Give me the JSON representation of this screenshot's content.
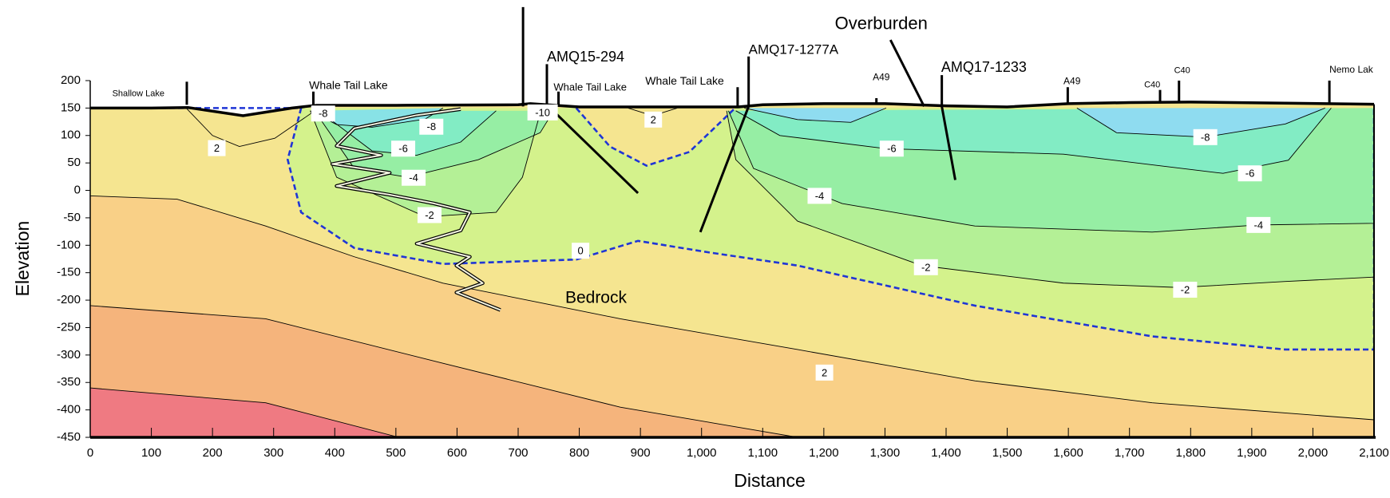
{
  "chart_data": {
    "type": "contour",
    "x_label": "Distance",
    "y_label": "Elevation",
    "xlim": [
      0,
      2100
    ],
    "ylim": [
      -450,
      200
    ],
    "xticks": [
      0,
      100,
      200,
      300,
      400,
      500,
      600,
      700,
      800,
      900,
      {
        "value": 1000,
        "label": "1,000"
      },
      {
        "value": 1100,
        "label": "1,100"
      },
      {
        "value": 1200,
        "label": "1,200"
      },
      {
        "value": 1300,
        "label": "1,300"
      },
      {
        "value": 1400,
        "label": "1,400"
      },
      {
        "value": 1500,
        "label": "1,500"
      },
      {
        "value": 1600,
        "label": "1,600"
      },
      {
        "value": 1700,
        "label": "1,700"
      },
      {
        "value": 1800,
        "label": "1,800"
      },
      {
        "value": 1900,
        "label": "1,900"
      },
      {
        "value": 2000,
        "label": "2,000"
      },
      {
        "value": 2100,
        "label": "2,100"
      }
    ],
    "yticks": [
      -450,
      -400,
      -350,
      -300,
      -250,
      -200,
      -150,
      -100,
      -50,
      0,
      50,
      100,
      150,
      200
    ],
    "grid": false,
    "surface": {
      "fill": "#f5e590",
      "x": [
        0,
        100,
        160,
        250,
        330,
        370,
        500,
        700,
        720,
        800,
        1000,
        1060,
        1100,
        1200,
        1300,
        1400,
        1500,
        1600,
        1700,
        1800,
        2100
      ],
      "y": [
        150,
        150,
        151,
        136,
        150,
        155,
        155,
        156,
        158,
        152,
        152,
        152,
        156,
        158,
        158,
        154,
        152,
        158,
        160,
        161,
        157
      ]
    },
    "contours": [
      {
        "level": 2,
        "fill": "#f9d087",
        "close": "bottom",
        "x": [
          0,
          142,
          287,
          432,
          577,
          867,
          1157,
          1447,
          1737,
          2100
        ],
        "y": [
          -10,
          -16,
          -65,
          -121,
          -169,
          -234,
          -290,
          -347,
          -387,
          -418
        ],
        "labels": [
          [
            1201,
            -332
          ]
        ]
      },
      {
        "fill": "#f5b47c",
        "close": "bottom",
        "x": [
          0,
          287,
          577,
          867,
          1157
        ],
        "y": [
          -210,
          -234,
          -315,
          -395,
          -450
        ]
      },
      {
        "fill": "#ef7a82",
        "close": "bottom",
        "x": [
          0,
          287,
          505
        ],
        "y": [
          -360,
          -387,
          -450
        ]
      },
      {
        "level": 0,
        "fill": "#d4f28c",
        "dashed": true,
        "color": "#1f35d6",
        "x": [
          0,
          345,
          323,
          345,
          432,
          577,
          795,
          896,
          1012,
          1157,
          1447,
          1737,
          1955,
          2100,
          2100
        ],
        "y": [
          150,
          150,
          56,
          -40,
          -105,
          -134,
          -126,
          -92,
          -113,
          -137,
          -210,
          -266,
          -290,
          -290,
          150
        ],
        "labels": [
          [
            802,
            -110
          ]
        ]
      },
      {
        "fill": "#f5e590",
        "dashed": true,
        "color": "#1f35d6",
        "x": [
          795,
          850,
          910,
          980,
          1055
        ],
        "y": [
          150,
          80,
          45,
          70,
          150
        ]
      },
      {
        "level": 2,
        "x": [
          880,
          920,
          960
        ],
        "y": [
          150,
          136,
          150
        ],
        "labels": [
          [
            921,
            129
          ]
        ]
      },
      {
        "level": -2,
        "fill": "#b4f096",
        "x": [
          360,
          403,
          548,
          664,
          707,
          737
        ],
        "y": [
          145,
          24,
          -48,
          -40,
          24,
          145
        ],
        "labels": [
          [
            555,
            -45
          ]
        ]
      },
      {
        "level": -2,
        "fill": "#b4f096",
        "x": [
          1041,
          1056,
          1157,
          1360,
          1592,
          1781,
          1955,
          2100,
          2100
        ],
        "y": [
          145,
          56,
          -56,
          -137,
          -169,
          -177,
          -166,
          -158,
          150
        ],
        "labels": [
          [
            1367,
            -140
          ],
          [
            1791,
            -181
          ]
        ]
      },
      {
        "level": -4,
        "fill": "#96eea4",
        "x": [
          367,
          432,
          519,
          635,
          736,
          758
        ],
        "y": [
          145,
          40,
          24,
          56,
          105,
          145
        ],
        "labels": [
          [
            529,
            23
          ]
        ]
      },
      {
        "level": -4,
        "fill": "#96eea4",
        "x": [
          1044,
          1085,
          1230,
          1447,
          1737,
          1911,
          2100,
          2100
        ],
        "y": [
          145,
          40,
          -24,
          -65,
          -76,
          -63,
          -60,
          150
        ],
        "labels": [
          [
            1193,
            -10
          ],
          [
            1911,
            -63
          ]
        ]
      },
      {
        "level": -6,
        "fill": "#82ecc4",
        "x": [
          374,
          461,
          534,
          606,
          664
        ],
        "y": [
          145,
          72,
          64,
          88,
          145
        ],
        "labels": [
          [
            512,
            76
          ]
        ]
      },
      {
        "level": -6,
        "fill": "#82ecc4",
        "x": [
          1056,
          1128,
          1302,
          1592,
          1853,
          1960,
          2030
        ],
        "y": [
          145,
          100,
          76,
          66,
          31,
          55,
          150
        ],
        "labels": [
          [
            1311,
            76
          ],
          [
            1897,
            31
          ]
        ]
      },
      {
        "level": -8,
        "fill": "#88e2e6",
        "x": [
          360,
          403,
          461,
          548,
          577
        ],
        "y": [
          145,
          120,
          115,
          130,
          150
        ],
        "labels": [
          [
            381,
            140
          ],
          [
            558,
            116
          ]
        ]
      },
      {
        "fill": "#8fdcf0",
        "x": [
          1070,
          1157,
          1244,
          1302
        ],
        "y": [
          150,
          129,
          124,
          150
        ]
      },
      {
        "level": -8,
        "fill": "#8fdcf0",
        "x": [
          1614,
          1679,
          1824,
          1955,
          2020
        ],
        "y": [
          150,
          105,
          97,
          121,
          150
        ],
        "labels": [
          [
            1824,
            97
          ]
        ]
      },
      {
        "level": -10,
        "fill": "#8fd2f0",
        "x": [
          720,
          740,
          760
        ],
        "y": [
          152,
          132,
          152
        ],
        "labels": [
          [
            740,
            142
          ]
        ]
      },
      {
        "level": 2,
        "x": [
          157,
          200,
          244,
          302,
          374
        ],
        "y": [
          150,
          100,
          80,
          95,
          150
        ],
        "labels": [
          [
            207,
            77
          ]
        ]
      }
    ],
    "lines": [
      {
        "x": [
          708,
          708
        ],
        "y": [
          334,
          153
        ]
      },
      {
        "x": [
          747,
          747,
          896
        ],
        "y": [
          230,
          156,
          -5
        ]
      },
      {
        "x": [
          766,
          766
        ],
        "y": [
          180,
          153
        ]
      },
      {
        "x": [
          1077,
          1077,
          998
        ],
        "y": [
          244,
          153,
          -76
        ]
      },
      {
        "x": [
          1059,
          1059
        ],
        "y": [
          188,
          153
        ]
      },
      {
        "x": [
          1309,
          1364
        ],
        "y": [
          274,
          153
        ]
      },
      {
        "x": [
          1393,
          1393,
          1415
        ],
        "y": [
          210,
          153,
          19
        ]
      },
      {
        "x": [
          158,
          158
        ],
        "y": [
          198,
          156
        ]
      },
      {
        "x": [
          365,
          365
        ],
        "y": [
          180,
          155
        ]
      },
      {
        "x": [
          1286,
          1286
        ],
        "y": [
          168,
          157
        ]
      },
      {
        "x": [
          1599,
          1599
        ],
        "y": [
          188,
          158
        ]
      },
      {
        "x": [
          1750,
          1750
        ],
        "y": [
          183,
          160
        ]
      },
      {
        "x": [
          1781,
          1781
        ],
        "y": [
          200,
          160
        ]
      },
      {
        "x": [
          2027,
          2027
        ],
        "y": [
          200,
          157
        ]
      }
    ],
    "ramp": {
      "x": [
        606,
        534,
        432,
        403,
        476,
        396,
        490,
        403,
        490,
        563,
        621,
        606,
        534,
        621,
        599,
        642,
        599,
        671
      ],
      "y": [
        148,
        137,
        113,
        81,
        64,
        48,
        32,
        8,
        -8,
        -24,
        -40,
        -73,
        -97,
        -121,
        -137,
        -169,
        -186,
        -218
      ]
    },
    "annotations": [
      {
        "text": "Shallow Lake",
        "x": 36,
        "y": 176
      },
      {
        "text": "Whale Tail Lake",
        "x": 358,
        "y": 190
      },
      {
        "text": "AMQ15-294",
        "x": 747,
        "y": 242
      },
      {
        "text": "Whale Tail Lake",
        "x": 758,
        "y": 187
      },
      {
        "text": "Whale Tail Lake",
        "x": 908,
        "y": 198
      },
      {
        "text": "AMQ17-1277A",
        "x": 1077,
        "y": 255
      },
      {
        "text": "Overburden",
        "x": 1218,
        "y": 302
      },
      {
        "text": "AMQ17-1233",
        "x": 1392,
        "y": 223
      },
      {
        "text": "A49",
        "x": 1280,
        "y": 205
      },
      {
        "text": "A49",
        "x": 1592,
        "y": 198
      },
      {
        "text": "C40",
        "x": 1724,
        "y": 192
      },
      {
        "text": "C40",
        "x": 1773,
        "y": 218
      },
      {
        "text": "Nemo Lak",
        "x": 2027,
        "y": 219
      },
      {
        "text": "Bedrock",
        "x": 777,
        "y": -197
      }
    ]
  }
}
